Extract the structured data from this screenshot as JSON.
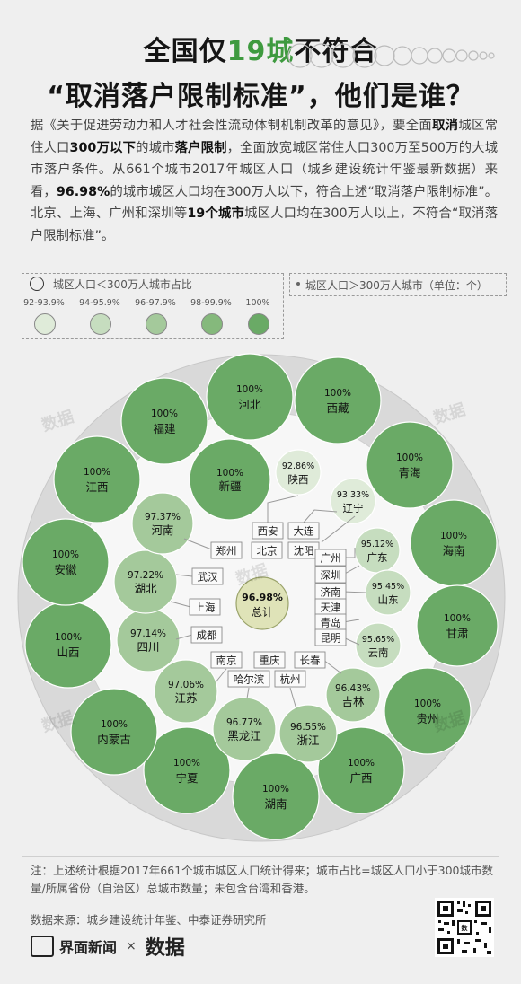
{
  "header": {
    "title_line1_pre": "全国仅",
    "title_line1_num": "19城",
    "title_line1_post": "不符合",
    "title_line2": "“取消落户限制标准”，他们是谁？"
  },
  "intro": {
    "p1": "据《关于促进劳动力和人才社会性流动体制机制改革的意见》，要全面",
    "p2": "取消",
    "p3": "城区常住人口",
    "p4": "300万以下",
    "p5": "的城市",
    "p6": "落户限制",
    "p7": "，全面放宽城区常住人口300万至500万的大城市落户条件。从661个城市2017年城区人口（城乡建设统计年鉴最新数据）来看，",
    "p8": "96.98%",
    "p9": "的城市城区人口均在300万人以下，符合上述“取消落户限制标准”。北京、上海、广州和深圳等",
    "p10": "19个城市",
    "p11": "城区人口均在300万人以上，不符合“取消落户限制标准”。"
  },
  "legend": {
    "circle_label": "城区人口＜300万人城市占比",
    "city_label": "城区人口＞300万人城市（单位：个）",
    "bins": [
      {
        "label": "92-93.9%",
        "color": "#dfebd9"
      },
      {
        "label": "94-95.9%",
        "color": "#c6ddbf"
      },
      {
        "label": "96-97.9%",
        "color": "#a4c99b"
      },
      {
        "label": "98-99.9%",
        "color": "#85b97c"
      },
      {
        "label": "100%",
        "color": "#6aaa66"
      }
    ]
  },
  "chart_data": {
    "type": "bubble",
    "total": {
      "name": "总计",
      "value": 96.98
    },
    "outer_ring": [
      {
        "name": "河北",
        "value": 100
      },
      {
        "name": "西藏",
        "value": 100
      },
      {
        "name": "青海",
        "value": 100
      },
      {
        "name": "海南",
        "value": 100
      },
      {
        "name": "甘肃",
        "value": 100
      },
      {
        "name": "贵州",
        "value": 100
      },
      {
        "name": "广西",
        "value": 100
      },
      {
        "name": "湖南",
        "value": 100
      },
      {
        "name": "宁夏",
        "value": 100
      },
      {
        "name": "内蒙古",
        "value": 100
      },
      {
        "name": "山西",
        "value": 100
      },
      {
        "name": "安徽",
        "value": 100
      },
      {
        "name": "江西",
        "value": 100
      },
      {
        "name": "福建",
        "value": 100
      }
    ],
    "inner_ring": [
      {
        "name": "新疆",
        "value": 100
      },
      {
        "name": "陕西",
        "value": 92.86,
        "cities": [
          "西安"
        ]
      },
      {
        "name": "辽宁",
        "value": 93.33,
        "cities": [
          "大连",
          "沈阳"
        ]
      },
      {
        "name": "广东",
        "value": 95.12,
        "cities": [
          "广州",
          "深圳"
        ]
      },
      {
        "name": "山东",
        "value": 95.45,
        "cities": [
          "济南",
          "青岛"
        ]
      },
      {
        "name": "云南",
        "value": 95.65,
        "cities": [
          "昆明"
        ]
      },
      {
        "name": "吉林",
        "value": 96.43,
        "cities": [
          "长春"
        ]
      },
      {
        "name": "浙江",
        "value": 96.55,
        "cities": [
          "杭州"
        ]
      },
      {
        "name": "黑龙江",
        "value": 96.77,
        "cities": [
          "哈尔滨"
        ]
      },
      {
        "name": "江苏",
        "value": 97.06,
        "cities": [
          "南京"
        ]
      },
      {
        "name": "四川",
        "value": 97.14,
        "cities": [
          "成都"
        ]
      },
      {
        "name": "湖北",
        "value": 97.22,
        "cities": [
          "武汉"
        ]
      },
      {
        "name": "河南",
        "value": 97.37,
        "cities": [
          "郑州"
        ]
      }
    ],
    "municipalities": [
      "北京",
      "上海",
      "天津",
      "重庆"
    ]
  },
  "watermark": "数据",
  "footer": {
    "note": "注：上述统计根据2017年661个城市城区人口统计得来；城市占比=城区人口小于300城市数量/所属省份（自治区）总城市数量；未包含台湾和香港。",
    "source": "数据来源：城乡建设统计年鉴、中泰证券研究所",
    "brand": "界面新闻",
    "times": "×",
    "partner": "数据"
  }
}
